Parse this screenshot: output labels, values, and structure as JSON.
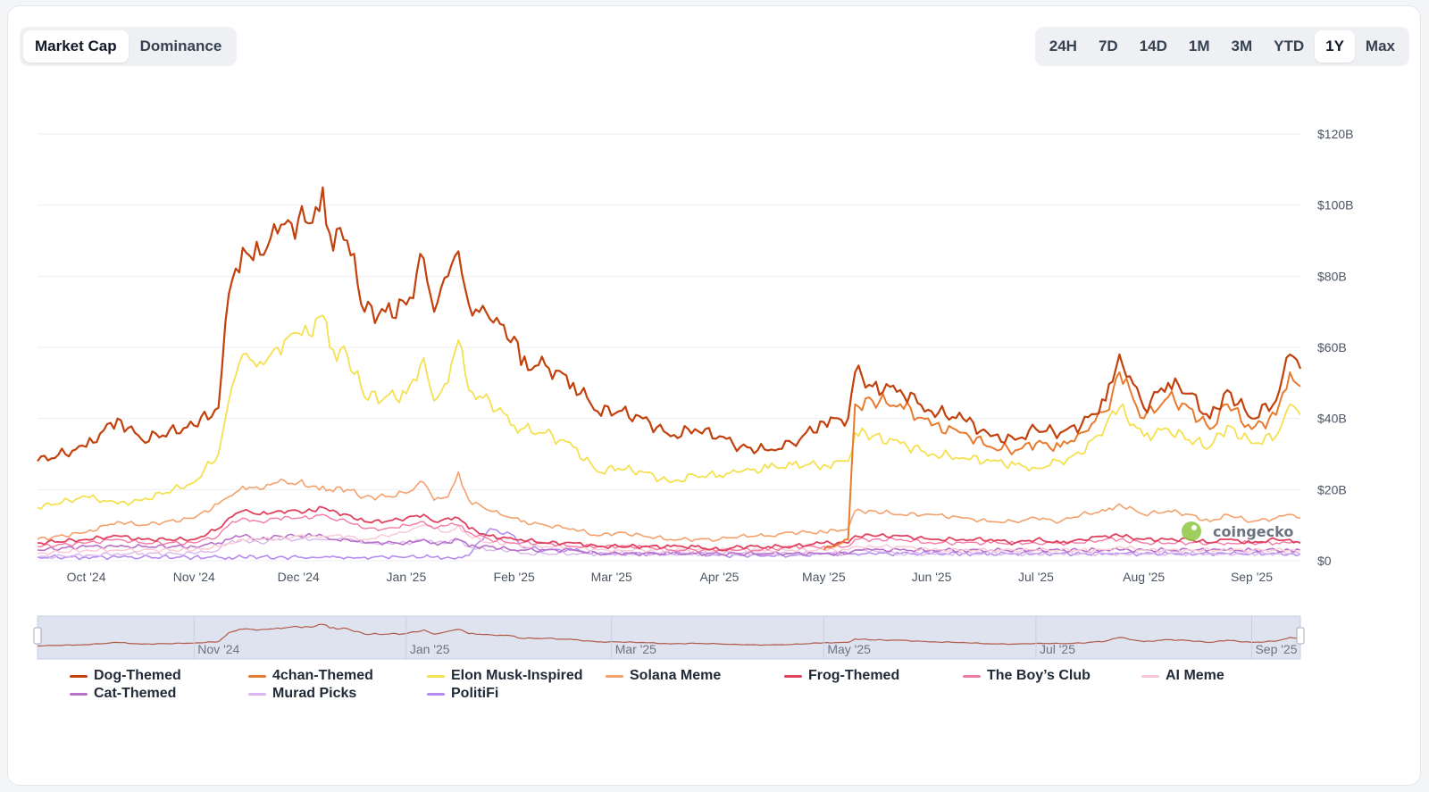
{
  "tabs": {
    "left": [
      {
        "label": "Market Cap",
        "active": true
      },
      {
        "label": "Dominance",
        "active": false
      }
    ],
    "ranges": [
      {
        "label": "24H",
        "active": false
      },
      {
        "label": "7D",
        "active": false
      },
      {
        "label": "14D",
        "active": false
      },
      {
        "label": "1M",
        "active": false
      },
      {
        "label": "3M",
        "active": false
      },
      {
        "label": "YTD",
        "active": false
      },
      {
        "label": "1Y",
        "active": true
      },
      {
        "label": "Max",
        "active": false
      }
    ]
  },
  "watermark": "coingecko",
  "navigator": {
    "labels": [
      "Nov '24",
      "Jan '25",
      "Mar '25",
      "May '25",
      "Jul '25",
      "Sep '25"
    ]
  },
  "chart_data": {
    "type": "line",
    "title": "",
    "xlabel": "",
    "ylabel": "",
    "x_range": [
      "2024-09-17",
      "2025-09-15"
    ],
    "ylim": [
      0,
      120
    ],
    "y_unit": "B USD",
    "y_ticks": [
      "$0",
      "$20B",
      "$40B",
      "$60B",
      "$80B",
      "$100B",
      "$120B"
    ],
    "x_ticks": [
      {
        "date": "2024-10-01",
        "label": "Oct '24"
      },
      {
        "date": "2024-11-01",
        "label": "Nov '24"
      },
      {
        "date": "2024-12-01",
        "label": "Dec '24"
      },
      {
        "date": "2025-01-01",
        "label": "Jan '25"
      },
      {
        "date": "2025-02-01",
        "label": "Feb '25"
      },
      {
        "date": "2025-03-01",
        "label": "Mar '25"
      },
      {
        "date": "2025-04-01",
        "label": "Apr '25"
      },
      {
        "date": "2025-05-01",
        "label": "May '25"
      },
      {
        "date": "2025-06-01",
        "label": "Jun '25"
      },
      {
        "date": "2025-07-01",
        "label": "Jul '25"
      },
      {
        "date": "2025-08-01",
        "label": "Aug '25"
      },
      {
        "date": "2025-09-01",
        "label": "Sep '25"
      }
    ],
    "grid": true,
    "legend_position": "bottom",
    "dates": [
      "2024-09-17",
      "2024-10-01",
      "2024-10-10",
      "2024-10-17",
      "2024-11-01",
      "2024-11-08",
      "2024-11-11",
      "2024-11-15",
      "2024-11-20",
      "2024-11-25",
      "2024-12-01",
      "2024-12-05",
      "2024-12-08",
      "2024-12-10",
      "2024-12-15",
      "2024-12-20",
      "2024-12-26",
      "2025-01-01",
      "2025-01-06",
      "2025-01-09",
      "2025-01-13",
      "2025-01-16",
      "2025-01-19",
      "2025-01-25",
      "2025-02-01",
      "2025-02-03",
      "2025-02-10",
      "2025-02-18",
      "2025-02-25",
      "2025-03-03",
      "2025-03-10",
      "2025-03-18",
      "2025-03-25",
      "2025-04-01",
      "2025-04-07",
      "2025-04-15",
      "2025-04-22",
      "2025-05-01",
      "2025-05-08",
      "2025-05-10",
      "2025-05-15",
      "2025-05-23",
      "2025-06-01",
      "2025-06-10",
      "2025-06-18",
      "2025-06-25",
      "2025-07-01",
      "2025-07-08",
      "2025-07-14",
      "2025-07-21",
      "2025-07-25",
      "2025-08-01",
      "2025-08-08",
      "2025-08-14",
      "2025-08-20",
      "2025-08-25",
      "2025-09-01",
      "2025-09-08",
      "2025-09-12",
      "2025-09-15"
    ],
    "series": [
      {
        "name": "Dog-Themed",
        "color": "#c2410c",
        "width": 2.2,
        "values": [
          28,
          32,
          40,
          34,
          38,
          43,
          75,
          88,
          86,
          92,
          96,
          95,
          105,
          92,
          90,
          70,
          70,
          72,
          85,
          70,
          80,
          87,
          72,
          68,
          63,
          55,
          55,
          50,
          42,
          42,
          40,
          35,
          37,
          35,
          32,
          31,
          33,
          39,
          40,
          53,
          49,
          48,
          42,
          40,
          35,
          34,
          37,
          36,
          38,
          45,
          58,
          43,
          50,
          47,
          40,
          48,
          40,
          45,
          58,
          54
        ]
      },
      {
        "name": "4chan-Themed",
        "color": "#ea7a2e",
        "width": 2,
        "values": [
          null,
          null,
          null,
          null,
          null,
          null,
          null,
          null,
          null,
          null,
          null,
          null,
          null,
          null,
          null,
          null,
          null,
          null,
          null,
          null,
          null,
          null,
          null,
          null,
          null,
          null,
          null,
          null,
          null,
          null,
          null,
          null,
          null,
          null,
          null,
          null,
          null,
          3,
          6,
          44,
          45,
          44,
          38,
          36,
          32,
          31,
          33,
          32,
          36,
          42,
          53,
          40,
          46,
          43,
          37,
          44,
          37,
          41,
          53,
          49
        ]
      },
      {
        "name": "Elon Musk-Inspired",
        "color": "#f5e050",
        "width": 1.8,
        "values": [
          15,
          18,
          16,
          17,
          22,
          30,
          45,
          58,
          56,
          60,
          64,
          63,
          69,
          60,
          58,
          46,
          46,
          47,
          57,
          45,
          50,
          62,
          48,
          45,
          38,
          37,
          36,
          32,
          25,
          26,
          25,
          22,
          24,
          24,
          25,
          26,
          27,
          27,
          28,
          36,
          35,
          33,
          30,
          29,
          28,
          27,
          26,
          28,
          30,
          38,
          43,
          35,
          37,
          34,
          32,
          38,
          33,
          35,
          44,
          41
        ]
      },
      {
        "name": "Solana Meme",
        "color": "#f3a26e",
        "width": 1.6,
        "values": [
          6,
          8,
          11,
          10,
          12,
          16,
          18,
          21,
          20,
          22,
          22,
          21,
          21,
          20,
          20,
          18,
          18,
          19,
          22,
          17,
          18,
          25,
          17,
          14,
          12,
          11,
          10,
          9,
          7,
          8,
          7,
          6,
          6,
          6,
          7,
          7,
          8,
          8,
          9,
          14,
          14,
          13,
          13,
          12,
          11,
          11,
          12,
          11,
          13,
          14,
          16,
          13,
          14,
          13,
          11,
          13,
          11,
          12,
          13,
          12
        ]
      },
      {
        "name": "Frog-Themed",
        "color": "#e0415f",
        "width": 1.8,
        "values": [
          5,
          6,
          7,
          6,
          6,
          9,
          12,
          14,
          13,
          14,
          14,
          14,
          15,
          14,
          13,
          11,
          11,
          12,
          13,
          11,
          12,
          12,
          9,
          7,
          6,
          6,
          5,
          5,
          4,
          4,
          4,
          4,
          4,
          3,
          4,
          4,
          4,
          5,
          5,
          7,
          7,
          7,
          6,
          6,
          6,
          5,
          6,
          5,
          6,
          7,
          7,
          6,
          6,
          6,
          5,
          6,
          5,
          6,
          6,
          5
        ]
      },
      {
        "name": "The Boy’s Club",
        "color": "#f47aa6",
        "width": 1.4,
        "values": [
          4,
          5,
          6,
          5,
          5,
          7,
          10,
          12,
          11,
          12,
          12,
          12,
          13,
          12,
          11,
          9,
          9,
          10,
          11,
          9,
          10,
          10,
          8,
          6,
          5,
          5,
          5,
          4,
          4,
          4,
          4,
          3,
          3,
          3,
          3,
          3,
          4,
          4,
          4,
          6,
          6,
          6,
          5,
          5,
          5,
          5,
          5,
          5,
          5,
          6,
          6,
          5,
          5,
          5,
          5,
          5,
          5,
          5,
          5,
          5
        ]
      },
      {
        "name": "AI Meme",
        "color": "#f9c8d4",
        "width": 1.4,
        "values": [
          2,
          3,
          3,
          3,
          3,
          4,
          5,
          6,
          6,
          6,
          7,
          7,
          7,
          7,
          7,
          6,
          7,
          8,
          10,
          9,
          8,
          10,
          7,
          5,
          5,
          4,
          4,
          4,
          3,
          3,
          3,
          3,
          3,
          3,
          3,
          3,
          3,
          3,
          3,
          4,
          4,
          4,
          3,
          3,
          3,
          3,
          3,
          3,
          3,
          3,
          4,
          3,
          3,
          3,
          3,
          3,
          3,
          3,
          3,
          3
        ]
      },
      {
        "name": "Cat-Themed",
        "color": "#b870c8",
        "width": 1.6,
        "values": [
          3,
          4,
          4,
          4,
          4,
          5,
          6,
          7,
          6,
          7,
          7,
          7,
          7,
          6,
          6,
          5,
          5,
          5,
          6,
          5,
          5,
          6,
          4,
          4,
          3,
          3,
          3,
          3,
          2,
          2,
          2,
          2,
          2,
          2,
          2,
          2,
          2,
          2,
          2,
          3,
          3,
          3,
          3,
          3,
          3,
          3,
          3,
          3,
          3,
          3,
          3,
          3,
          3,
          3,
          3,
          3,
          3,
          3,
          3,
          3
        ]
      },
      {
        "name": "Murad Picks",
        "color": "#d9b8ec",
        "width": 1.4,
        "values": [
          1,
          1.5,
          2,
          2,
          2,
          3,
          5,
          6,
          5,
          6,
          6,
          6,
          6,
          6,
          6,
          5,
          5,
          5,
          6,
          5,
          5,
          6,
          4,
          3,
          3,
          2,
          2,
          2,
          2,
          2,
          2,
          2,
          2,
          2,
          2,
          2,
          2,
          2,
          2,
          3,
          3,
          2,
          2,
          2,
          2,
          2,
          2,
          2,
          2,
          2,
          2,
          2,
          2,
          2,
          2,
          2,
          2,
          2,
          2,
          2
        ]
      },
      {
        "name": "PolitiFi",
        "color": "#b68cf0",
        "width": 1.6,
        "values": [
          1,
          1,
          1,
          1,
          1,
          1,
          1,
          1,
          1,
          1,
          1,
          1,
          1,
          1,
          1,
          1,
          1,
          1,
          1,
          1,
          1,
          1,
          1.5,
          9,
          7,
          4,
          3,
          3,
          2,
          2,
          2,
          2,
          2,
          1.5,
          1.5,
          1.5,
          1.5,
          2,
          2,
          2,
          2,
          2,
          2,
          2,
          2,
          2,
          2,
          2,
          2,
          2,
          2,
          2,
          2,
          2,
          2,
          2,
          2,
          2,
          2,
          2
        ]
      }
    ]
  }
}
